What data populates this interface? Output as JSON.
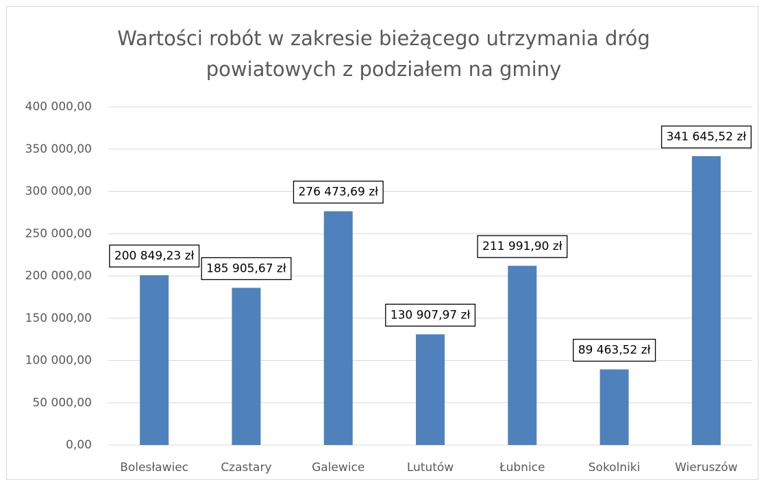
{
  "chart_data": {
    "type": "bar",
    "title": "Wartości robót w zakresie bieżącego utrzymania dróg powiatowych z podziałem na gminy",
    "categories": [
      "Bolesławiec",
      "Czastary",
      "Galewice",
      "Lututów",
      "Łubnice",
      "Sokolniki",
      "Wieruszów"
    ],
    "values": [
      200849.23,
      185905.67,
      276473.69,
      130907.97,
      211991.9,
      89463.52,
      341645.52
    ],
    "value_labels": [
      "200 849,23 zł",
      "185 905,67 zł",
      "276 473,69 zł",
      "130 907,97 zł",
      "211 991,90 zł",
      "89 463,52 zł",
      "341 645,52 zł"
    ],
    "color": "#4f81bd",
    "ylim": [
      0,
      400000
    ],
    "yticks": [
      {
        "value": 0,
        "label": "0,00"
      },
      {
        "value": 50000,
        "label": "50 000,00"
      },
      {
        "value": 100000,
        "label": "100 000,00"
      },
      {
        "value": 150000,
        "label": "150 000,00"
      },
      {
        "value": 200000,
        "label": "200 000,00"
      },
      {
        "value": 250000,
        "label": "250 000,00"
      },
      {
        "value": 300000,
        "label": "300 000,00"
      },
      {
        "value": 350000,
        "label": "350 000,00"
      },
      {
        "value": 400000,
        "label": "400 000,00"
      }
    ],
    "grid": true
  }
}
